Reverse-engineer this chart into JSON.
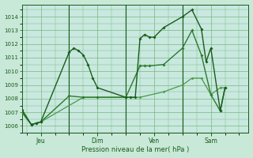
{
  "background_color": "#c8e8d8",
  "plot_bg_color": "#c8e8e0",
  "grid_color": "#7ab87a",
  "line_color_dark": "#1a5c1a",
  "line_color_mid": "#2d7a2d",
  "line_color_light": "#4a9a4a",
  "xlabel": "Pression niveau de la mer( hPa )",
  "ylim": [
    1005.5,
    1014.9
  ],
  "yticks": [
    1006,
    1007,
    1008,
    1009,
    1010,
    1011,
    1012,
    1013,
    1014
  ],
  "xlim": [
    0,
    96
  ],
  "vlines": [
    20,
    44,
    68
  ],
  "day_ticks": [
    8,
    32,
    56,
    80
  ],
  "day_labels": [
    "Jeu",
    "Dim",
    "Ven",
    "Sam"
  ],
  "series1_x": [
    0,
    4,
    6,
    8,
    20,
    22,
    24,
    26,
    28,
    30,
    32,
    44,
    46,
    48,
    50,
    52,
    54,
    56,
    60,
    68,
    72,
    76,
    78,
    80,
    84,
    86
  ],
  "series1_y": [
    1007.2,
    1006.1,
    1006.2,
    1006.3,
    1011.4,
    1011.7,
    1011.5,
    1011.2,
    1010.5,
    1009.5,
    1008.8,
    1008.1,
    1008.1,
    1008.1,
    1012.4,
    1012.7,
    1012.5,
    1012.5,
    1013.2,
    1014.0,
    1014.5,
    1013.1,
    1010.7,
    1011.7,
    1007.1,
    1008.8
  ],
  "series2_x": [
    0,
    4,
    6,
    8,
    20,
    26,
    32,
    44,
    50,
    52,
    54,
    60,
    68,
    72,
    76,
    80,
    84,
    86
  ],
  "series2_y": [
    1007.0,
    1006.1,
    1006.2,
    1006.3,
    1008.2,
    1008.1,
    1008.1,
    1008.1,
    1010.4,
    1010.4,
    1010.4,
    1010.5,
    1011.7,
    1013.0,
    1011.2,
    1008.3,
    1007.1,
    1008.8
  ],
  "series3_x": [
    0,
    4,
    6,
    8,
    26,
    44,
    50,
    60,
    68,
    72,
    76,
    80,
    84,
    86
  ],
  "series3_y": [
    1007.0,
    1006.1,
    1006.2,
    1006.3,
    1008.1,
    1008.1,
    1008.1,
    1008.5,
    1009.0,
    1009.5,
    1009.5,
    1008.3,
    1008.8,
    1008.8
  ]
}
